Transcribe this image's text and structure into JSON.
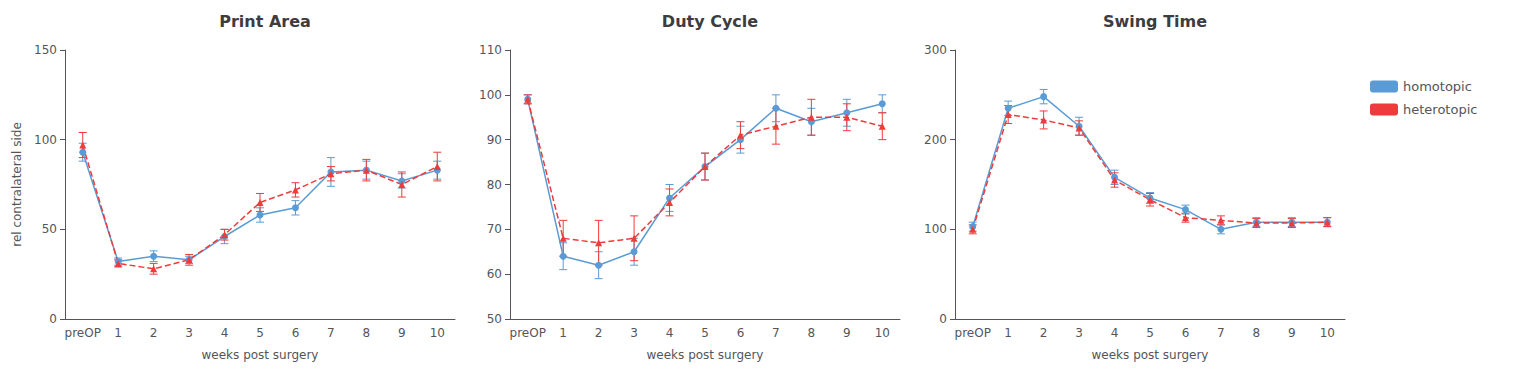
{
  "chart_data": [
    {
      "type": "line",
      "title": "Print Area",
      "xlabel": "weeks post surgery",
      "ylabel": "rel contralateral side",
      "categories": [
        "preOP",
        "1",
        "2",
        "3",
        "4",
        "5",
        "6",
        "7",
        "8",
        "9",
        "10"
      ],
      "series": [
        {
          "name": "homotopic",
          "color": "#5B9BD5",
          "line_style": "solid",
          "marker": "circle",
          "values": [
            93,
            32,
            35,
            33,
            46,
            58,
            62,
            82,
            83,
            77,
            83
          ],
          "errors": [
            5,
            2,
            3,
            2,
            4,
            4,
            4,
            8,
            5,
            4,
            5
          ]
        },
        {
          "name": "heterotopic",
          "color": "#EE3B3B",
          "line_style": "dashed",
          "marker": "triangle",
          "values": [
            97,
            31,
            28,
            33,
            47,
            65,
            72,
            81,
            83,
            75,
            85
          ],
          "errors": [
            7,
            2,
            3,
            3,
            3,
            5,
            4,
            4,
            6,
            7,
            8
          ]
        }
      ],
      "ylim": [
        0,
        150
      ],
      "yticks": [
        0,
        50,
        100,
        150
      ],
      "grid": false
    },
    {
      "type": "line",
      "title": "Duty Cycle",
      "xlabel": "weeks post surgery",
      "categories": [
        "preOP",
        "1",
        "2",
        "3",
        "4",
        "5",
        "6",
        "7",
        "8",
        "9",
        "10"
      ],
      "series": [
        {
          "name": "homotopic",
          "color": "#5B9BD5",
          "line_style": "solid",
          "marker": "circle",
          "values": [
            99,
            64,
            62,
            65,
            77,
            84,
            90,
            97,
            94,
            96,
            98
          ],
          "errors": [
            1,
            3,
            3,
            3,
            3,
            3,
            3,
            3,
            3,
            3,
            2
          ]
        },
        {
          "name": "heterotopic",
          "color": "#EE3B3B",
          "line_style": "dashed",
          "marker": "triangle",
          "values": [
            99,
            68,
            67,
            68,
            76,
            84,
            91,
            93,
            95,
            95,
            93
          ],
          "errors": [
            1,
            4,
            5,
            5,
            3,
            3,
            3,
            4,
            4,
            3,
            3
          ]
        }
      ],
      "ylim": [
        50,
        110
      ],
      "yticks": [
        50,
        60,
        70,
        80,
        90,
        100,
        110
      ],
      "grid": false
    },
    {
      "type": "line",
      "title": "Swing Time",
      "xlabel": "weeks post surgery",
      "categories": [
        "preOP",
        "1",
        "2",
        "3",
        "4",
        "5",
        "6",
        "7",
        "8",
        "9",
        "10"
      ],
      "series": [
        {
          "name": "homotopic",
          "color": "#5B9BD5",
          "line_style": "solid",
          "marker": "circle",
          "values": [
            103,
            235,
            248,
            215,
            158,
            135,
            122,
            100,
            108,
            108,
            108
          ],
          "errors": [
            5,
            8,
            8,
            10,
            8,
            6,
            5,
            5,
            5,
            5,
            5
          ]
        },
        {
          "name": "heterotopic",
          "color": "#EE3B3B",
          "line_style": "dashed",
          "marker": "triangle",
          "values": [
            100,
            228,
            222,
            213,
            155,
            133,
            113,
            110,
            107,
            107,
            108
          ],
          "errors": [
            5,
            10,
            10,
            8,
            8,
            7,
            5,
            5,
            5,
            5,
            5
          ]
        }
      ],
      "ylim": [
        0,
        300
      ],
      "yticks": [
        0,
        100,
        200,
        300
      ],
      "grid": false,
      "legend": "right"
    }
  ]
}
